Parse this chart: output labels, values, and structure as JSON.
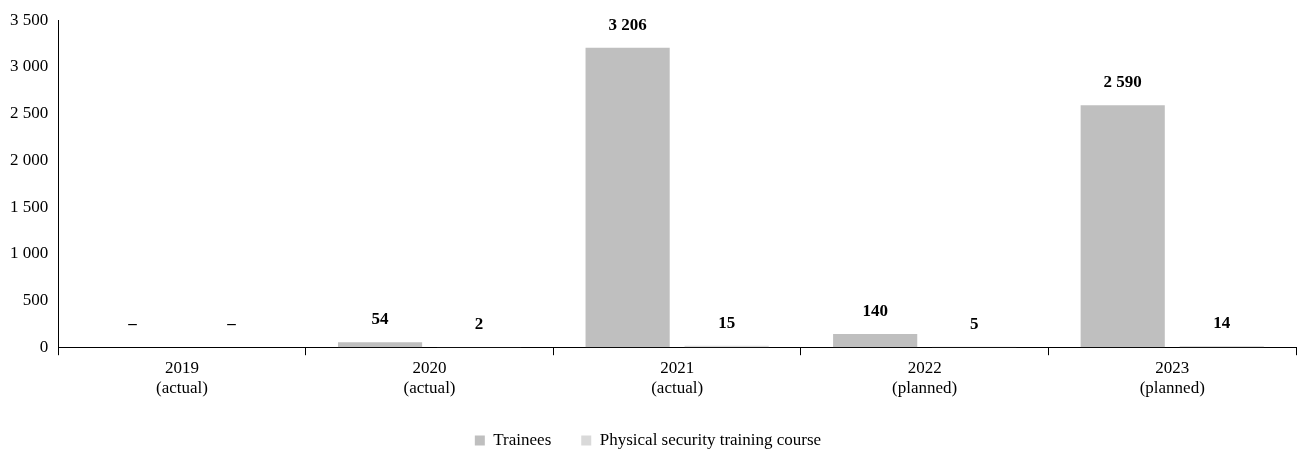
{
  "chart_data": {
    "type": "bar",
    "categories": [
      "2019\n(actual)",
      "2020\n(actual)",
      "2021\n(actual)",
      "2022\n(planned)",
      "2023\n(planned)"
    ],
    "series": [
      {
        "name": "Trainees",
        "color": "#bfbfbf",
        "values": [
          null,
          54,
          3206,
          140,
          2590
        ],
        "value_labels": [
          "–",
          "54",
          "3 206",
          "140",
          "2 590"
        ]
      },
      {
        "name": "Physical security training course",
        "color": "#d9d9d9",
        "values": [
          null,
          2,
          15,
          5,
          14
        ],
        "value_labels": [
          "–",
          "2",
          "15",
          "5",
          "14"
        ]
      }
    ],
    "ylim": [
      0,
      3500
    ],
    "yticks": [
      {
        "value": 0,
        "label": "0"
      },
      {
        "value": 500,
        "label": "500"
      },
      {
        "value": 1000,
        "label": "1 000"
      },
      {
        "value": 1500,
        "label": "1 500"
      },
      {
        "value": 2000,
        "label": "2 000"
      },
      {
        "value": 2500,
        "label": "2 500"
      },
      {
        "value": 3000,
        "label": "3 000"
      },
      {
        "value": 3500,
        "label": "3 500"
      }
    ],
    "grid": false,
    "legend": "bottom"
  }
}
